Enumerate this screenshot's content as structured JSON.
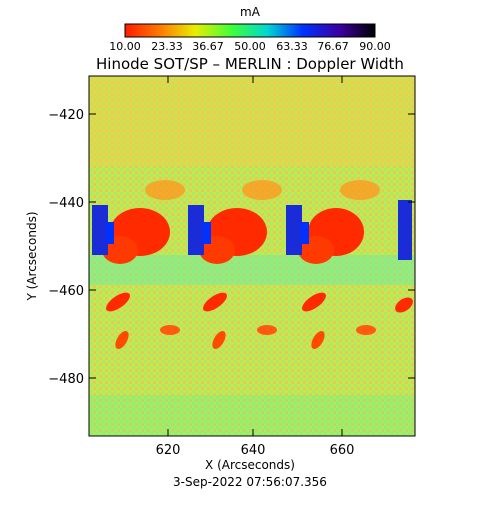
{
  "title": "Hinode SOT/SP – MERLIN : Doppler Width",
  "timestamp": "3-Sep-2022 07:56:07.356",
  "colorbar": {
    "unit": "mA",
    "tick_labels": [
      "10.00",
      "23.33",
      "36.67",
      "50.00",
      "63.33",
      "76.67",
      "90.00"
    ],
    "colormap": [
      "#ff1c00",
      "#ff7a00",
      "#e8ee00",
      "#3cff3c",
      "#00d7d2",
      "#0032ff",
      "#3c00a0",
      "#000000"
    ]
  },
  "x_axis": {
    "label": "X (Arcseconds)",
    "ticks": [
      "620",
      "640",
      "660"
    ],
    "range": [
      603,
      676
    ]
  },
  "y_axis": {
    "label": "Y (Arcseconds)",
    "ticks": [
      "−420",
      "−440",
      "−460",
      "−480"
    ],
    "range": [
      -494,
      -411
    ]
  },
  "map": {
    "background": "#c8e84a",
    "features": "three repeated panels, each with a large red region near Y −445, red elongated streaks near Y −465 and Y −475, dark blue patches left of each red region"
  }
}
